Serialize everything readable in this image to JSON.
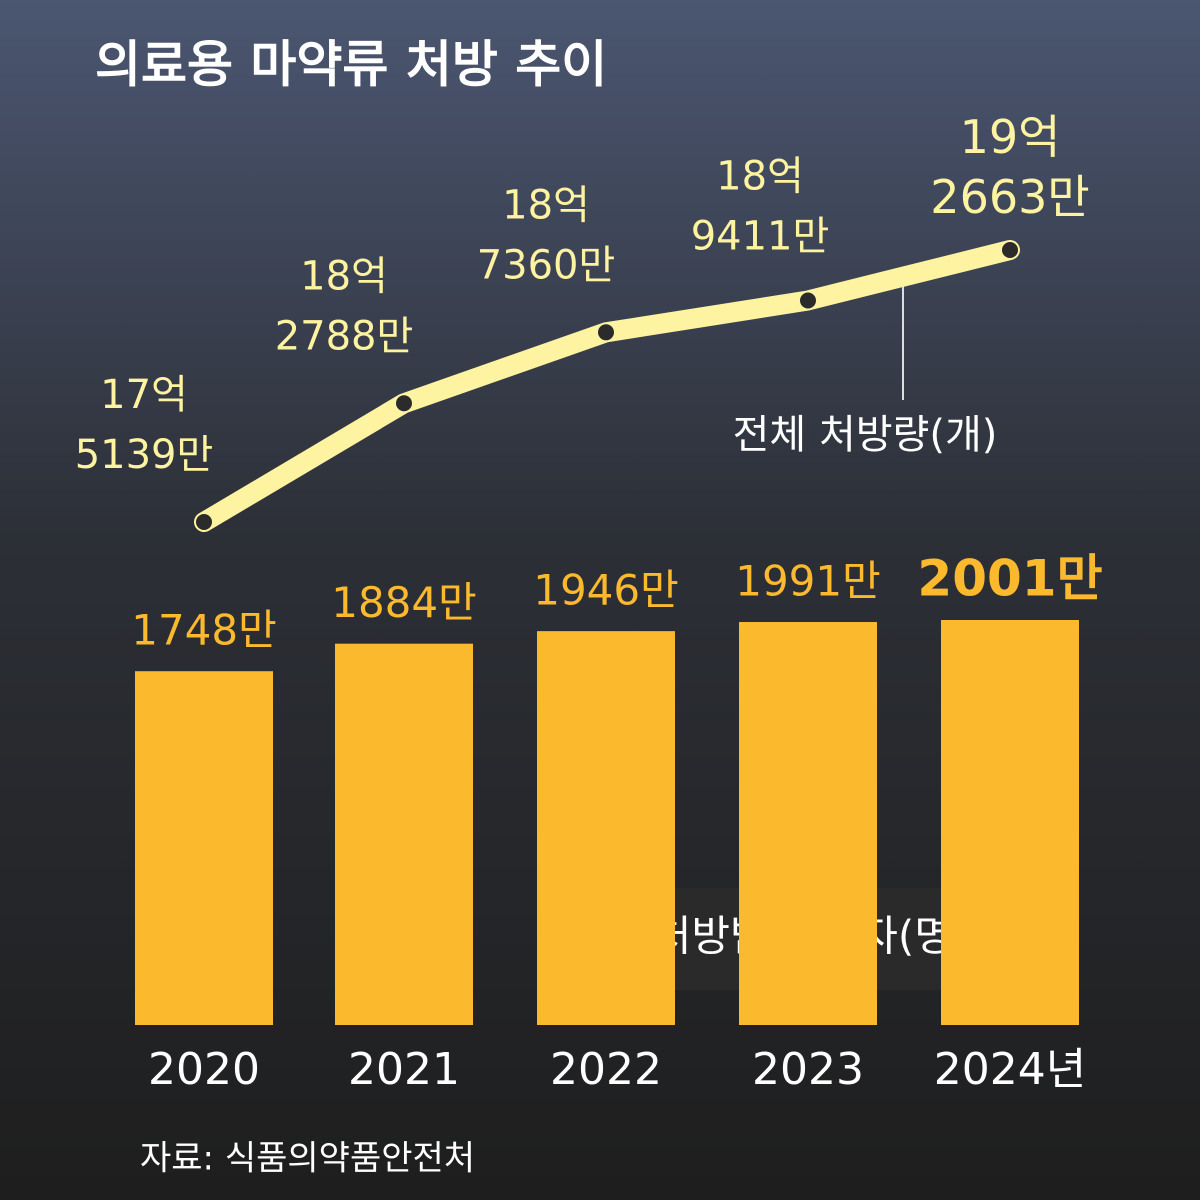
{
  "chart_data": [
    {
      "type": "line",
      "title": "의료용 마약류 처방 추이",
      "series": [
        {
          "name": "전체 처방량(개)",
          "color": "#fdf3a0",
          "values": [
            1751390000,
            1827880000,
            1873600000,
            1894110000,
            1926630000
          ],
          "value_labels": [
            "17억 5139만",
            "18억 2788만",
            "18억 7360만",
            "18억 9411만",
            "19억 2663만"
          ]
        }
      ]
    },
    {
      "type": "bar",
      "source": "자료: 식품의약품안전처",
      "categories": [
        "2020",
        "2021",
        "2022",
        "2023",
        "2024년"
      ],
      "series": [
        {
          "name": "처방받은 환자(명)",
          "color": "#fbb92e",
          "values": [
            17480000,
            18840000,
            19460000,
            19910000,
            20010000
          ],
          "value_labels": [
            "1748만",
            "1884만",
            "1946만",
            "1991만",
            "2001만"
          ]
        }
      ]
    }
  ]
}
